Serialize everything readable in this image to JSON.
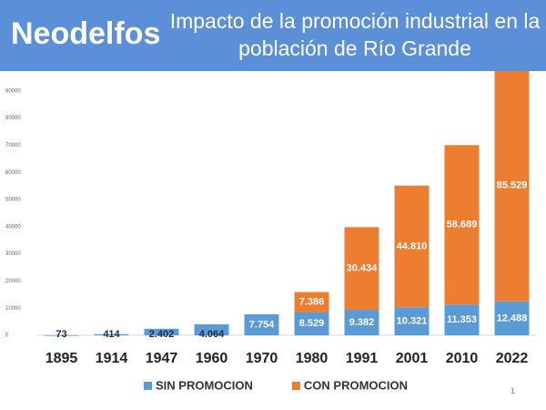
{
  "brand": "Neodelfos",
  "footer": "1",
  "chart_data": {
    "type": "stacked-bar",
    "title": "Impacto de la promoción industrial en la población de Río Grande",
    "categories": [
      "1895",
      "1914",
      "1947",
      "1960",
      "1970",
      "1980",
      "1991",
      "2001",
      "2010",
      "2022"
    ],
    "series": [
      {
        "name": "SIN PROMOCION",
        "color": "#5b9bd5",
        "values": [
          73,
          414,
          2402,
          4064,
          7754,
          8529,
          9382,
          10321,
          11353,
          12488
        ],
        "value_labels": [
          "73",
          "414",
          "2.402",
          "4.064",
          "7.754",
          "8.529",
          "9.382",
          "10.321",
          "11.353",
          "12.488"
        ]
      },
      {
        "name": "CON PROMOCION",
        "color": "#ed7d31",
        "values": [
          null,
          null,
          null,
          null,
          null,
          7386,
          30434,
          44810,
          58689,
          85529
        ],
        "value_labels": [
          null,
          null,
          null,
          null,
          null,
          "7.386",
          "30.434",
          "44.810",
          "58.689",
          "85.529"
        ]
      }
    ],
    "ylim": [
      0,
      100000
    ],
    "yticks": [
      0,
      10000,
      20000,
      30000,
      40000,
      50000,
      60000,
      70000,
      80000,
      90000
    ],
    "grid": false,
    "legend": "bottom"
  }
}
